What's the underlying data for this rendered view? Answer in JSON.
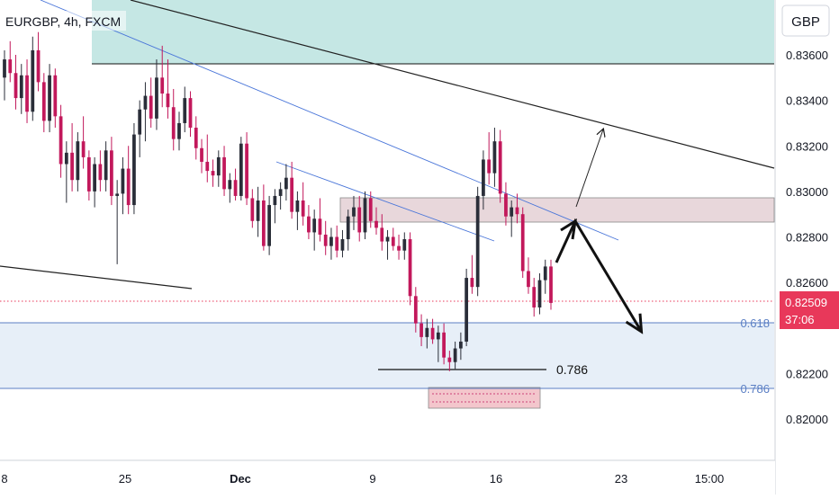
{
  "header": {
    "symbol_label": "EURGBP, 4h, FXCM"
  },
  "currency_button": {
    "label": "GBP"
  },
  "price_tag": {
    "price": "0.82509",
    "countdown": "37:06"
  },
  "fib_levels": [
    {
      "label": "0.618",
      "price": 0.82402
    },
    {
      "label": "0.786",
      "price": 0.82138
    }
  ],
  "annotation": {
    "label": "0.786",
    "price": 0.82228
  },
  "colors": {
    "up": "#2a2e39",
    "down": "#c2185b",
    "zone": "#b2dfdb",
    "resistance_box": "#e8d7db",
    "fib_line": "#5b7fc4",
    "price_tag_bg": "#e8385a",
    "channel": "#4a76d9"
  },
  "chart_data": {
    "type": "candlestick",
    "symbol": "EURGBP",
    "timeframe": "4h",
    "source": "FXCM",
    "currency": "GBP",
    "last_price": 0.82509,
    "y_axis": {
      "range": [
        0.8186,
        0.8372
      ],
      "ticks": [
        "0.83600",
        "0.83400",
        "0.83200",
        "0.83000",
        "0.82800",
        "0.82600",
        "0.82200",
        "0.82000"
      ]
    },
    "x_axis": {
      "ticks": [
        "8",
        "25",
        "Dec",
        "9",
        "16",
        "23",
        "15:00"
      ]
    },
    "candles_ohlc": [
      [
        0.835,
        0.8362,
        0.834,
        0.8358
      ],
      [
        0.8358,
        0.8366,
        0.8348,
        0.8352
      ],
      [
        0.8352,
        0.836,
        0.8336,
        0.8341
      ],
      [
        0.8341,
        0.8356,
        0.8334,
        0.8351
      ],
      [
        0.8351,
        0.8358,
        0.833,
        0.8335
      ],
      [
        0.8335,
        0.8368,
        0.8331,
        0.8362
      ],
      [
        0.8362,
        0.837,
        0.8344,
        0.8348
      ],
      [
        0.8348,
        0.8352,
        0.8326,
        0.8331
      ],
      [
        0.8331,
        0.8356,
        0.8326,
        0.8351
      ],
      [
        0.8351,
        0.8354,
        0.8328,
        0.8333
      ],
      [
        0.8333,
        0.8338,
        0.8306,
        0.8312
      ],
      [
        0.8312,
        0.8322,
        0.8295,
        0.8317
      ],
      [
        0.8317,
        0.833,
        0.83,
        0.8305
      ],
      [
        0.8305,
        0.8326,
        0.83,
        0.8322
      ],
      [
        0.8322,
        0.8333,
        0.831,
        0.8315
      ],
      [
        0.8315,
        0.8318,
        0.8296,
        0.83
      ],
      [
        0.83,
        0.8315,
        0.8293,
        0.8312
      ],
      [
        0.8312,
        0.8318,
        0.83,
        0.8305
      ],
      [
        0.8305,
        0.8322,
        0.83,
        0.8318
      ],
      [
        0.8318,
        0.8324,
        0.8294,
        0.8298
      ],
      [
        0.8298,
        0.8305,
        0.8268,
        0.8299
      ],
      [
        0.8299,
        0.8315,
        0.829,
        0.831
      ],
      [
        0.831,
        0.832,
        0.829,
        0.8294
      ],
      [
        0.8294,
        0.833,
        0.829,
        0.8325
      ],
      [
        0.8325,
        0.834,
        0.8315,
        0.8336
      ],
      [
        0.8336,
        0.8348,
        0.8322,
        0.8342
      ],
      [
        0.8342,
        0.835,
        0.8328,
        0.8332
      ],
      [
        0.8332,
        0.8358,
        0.8327,
        0.835
      ],
      [
        0.835,
        0.8364,
        0.8337,
        0.8343
      ],
      [
        0.8343,
        0.8358,
        0.8332,
        0.8337
      ],
      [
        0.8337,
        0.8345,
        0.8318,
        0.8323
      ],
      [
        0.8323,
        0.8335,
        0.8318,
        0.833
      ],
      [
        0.833,
        0.8346,
        0.8326,
        0.8341
      ],
      [
        0.8341,
        0.8344,
        0.8324,
        0.8328
      ],
      [
        0.8328,
        0.8333,
        0.8314,
        0.8319
      ],
      [
        0.8319,
        0.8323,
        0.8308,
        0.8313
      ],
      [
        0.8313,
        0.8325,
        0.8304,
        0.8309
      ],
      [
        0.8309,
        0.8314,
        0.8302,
        0.8307
      ],
      [
        0.8307,
        0.8318,
        0.8302,
        0.8315
      ],
      [
        0.8315,
        0.832,
        0.8298,
        0.8301
      ],
      [
        0.8301,
        0.8308,
        0.8295,
        0.8305
      ],
      [
        0.8305,
        0.831,
        0.8296,
        0.8298
      ],
      [
        0.8298,
        0.8324,
        0.8296,
        0.8321
      ],
      [
        0.8321,
        0.8326,
        0.8294,
        0.8297
      ],
      [
        0.8297,
        0.8301,
        0.8284,
        0.8287
      ],
      [
        0.8287,
        0.8302,
        0.828,
        0.8296
      ],
      [
        0.8296,
        0.8303,
        0.8274,
        0.8276
      ],
      [
        0.8276,
        0.8298,
        0.8272,
        0.8294
      ],
      [
        0.8294,
        0.8301,
        0.8286,
        0.8298
      ],
      [
        0.8298,
        0.8304,
        0.8292,
        0.8301
      ],
      [
        0.8301,
        0.8312,
        0.8296,
        0.8306
      ],
      [
        0.8306,
        0.8313,
        0.8288,
        0.8291
      ],
      [
        0.8291,
        0.83,
        0.8283,
        0.8296
      ],
      [
        0.8296,
        0.8304,
        0.8285,
        0.8289
      ],
      [
        0.8289,
        0.8294,
        0.8279,
        0.8282
      ],
      [
        0.8282,
        0.8292,
        0.8274,
        0.8288
      ],
      [
        0.8288,
        0.8297,
        0.8278,
        0.8281
      ],
      [
        0.8281,
        0.8287,
        0.8272,
        0.8276
      ],
      [
        0.8276,
        0.8284,
        0.827,
        0.828
      ],
      [
        0.828,
        0.8285,
        0.8271,
        0.8274
      ],
      [
        0.8274,
        0.8283,
        0.8271,
        0.8279
      ],
      [
        0.8279,
        0.8292,
        0.8274,
        0.8289
      ],
      [
        0.8289,
        0.8298,
        0.8283,
        0.8293
      ],
      [
        0.8293,
        0.8298,
        0.8278,
        0.8282
      ],
      [
        0.8282,
        0.83,
        0.8279,
        0.8297
      ],
      [
        0.8297,
        0.83,
        0.8284,
        0.8287
      ],
      [
        0.8287,
        0.8293,
        0.8281,
        0.8284
      ],
      [
        0.8284,
        0.829,
        0.8274,
        0.8278
      ],
      [
        0.8278,
        0.8283,
        0.827,
        0.828
      ],
      [
        0.828,
        0.8284,
        0.8274,
        0.8276
      ],
      [
        0.8276,
        0.8281,
        0.827,
        0.8274
      ],
      [
        0.8274,
        0.8282,
        0.827,
        0.8279
      ],
      [
        0.8279,
        0.8282,
        0.825,
        0.8254
      ],
      [
        0.8254,
        0.8258,
        0.8238,
        0.8242
      ],
      [
        0.8242,
        0.8246,
        0.8232,
        0.8236
      ],
      [
        0.8236,
        0.8244,
        0.8231,
        0.824
      ],
      [
        0.824,
        0.8244,
        0.8233,
        0.8235
      ],
      [
        0.8235,
        0.8241,
        0.8225,
        0.8238
      ],
      [
        0.8238,
        0.8242,
        0.8224,
        0.8227
      ],
      [
        0.8227,
        0.823,
        0.8221,
        0.8225
      ],
      [
        0.8225,
        0.8234,
        0.8222,
        0.8231
      ],
      [
        0.8231,
        0.8238,
        0.8226,
        0.8234
      ],
      [
        0.8234,
        0.8266,
        0.8232,
        0.8262
      ],
      [
        0.8262,
        0.8272,
        0.8255,
        0.8258
      ],
      [
        0.8258,
        0.8302,
        0.8254,
        0.8298
      ],
      [
        0.8298,
        0.8318,
        0.8292,
        0.8314
      ],
      [
        0.8314,
        0.8326,
        0.8303,
        0.8308
      ],
      [
        0.8308,
        0.8328,
        0.8302,
        0.8322
      ],
      [
        0.8322,
        0.8327,
        0.8295,
        0.8299
      ],
      [
        0.8299,
        0.8304,
        0.8285,
        0.8289
      ],
      [
        0.8289,
        0.8296,
        0.828,
        0.8293
      ],
      [
        0.8293,
        0.8299,
        0.8286,
        0.829
      ],
      [
        0.829,
        0.8293,
        0.8262,
        0.8265
      ],
      [
        0.8265,
        0.8271,
        0.8255,
        0.8258
      ],
      [
        0.8258,
        0.8262,
        0.8245,
        0.8249
      ],
      [
        0.8249,
        0.8264,
        0.8246,
        0.8261
      ],
      [
        0.8261,
        0.827,
        0.8255,
        0.8267
      ],
      [
        0.8267,
        0.827,
        0.8248,
        0.8251
      ]
    ],
    "horizontal_lines": [
      0.82402,
      0.82138,
      0.83566
    ],
    "zones": [
      {
        "name": "supply",
        "from": 0.83566,
        "to": 0.8372
      },
      {
        "name": "resistance",
        "from": 0.82854,
        "to": 0.82972
      },
      {
        "name": "target",
        "from": 0.82054,
        "to": 0.82145
      }
    ]
  }
}
